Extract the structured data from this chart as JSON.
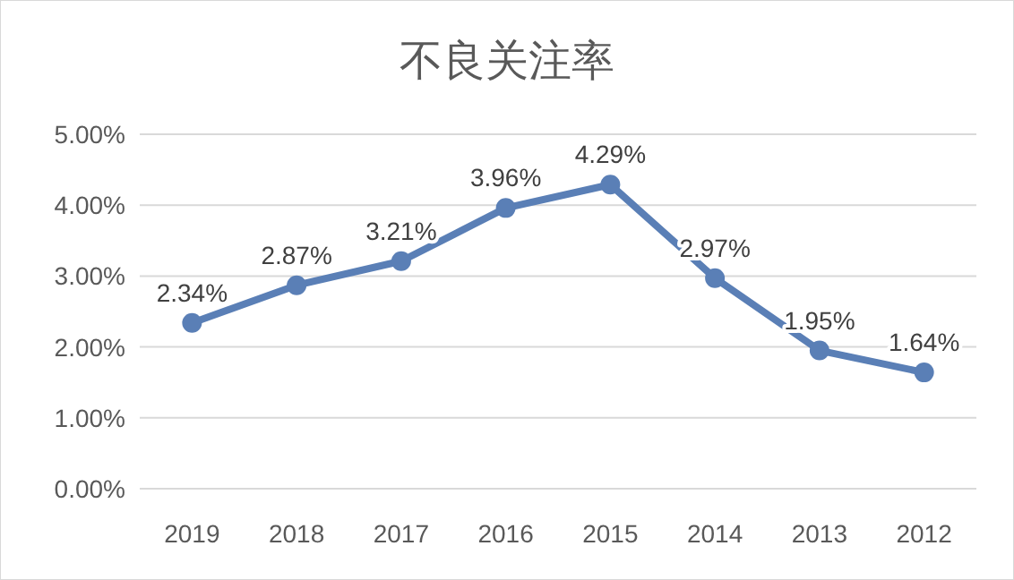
{
  "chart_data": {
    "type": "line",
    "title": "不良关注率",
    "categories": [
      "2019",
      "2018",
      "2017",
      "2016",
      "2015",
      "2014",
      "2013",
      "2012"
    ],
    "series": [
      {
        "color": "#5a7fb6",
        "values": [
          2.34,
          2.87,
          3.21,
          3.96,
          4.29,
          2.97,
          1.95,
          1.64
        ],
        "value_labels": [
          "2.34%",
          "2.87%",
          "3.21%",
          "3.96%",
          "4.29%",
          "2.97%",
          "1.95%",
          "1.64%"
        ]
      }
    ],
    "ylim": [
      0,
      5
    ],
    "yticks": [
      {
        "value": 0,
        "label": "0.00%"
      },
      {
        "value": 1,
        "label": "1.00%"
      },
      {
        "value": 2,
        "label": "2.00%"
      },
      {
        "value": 3,
        "label": "3.00%"
      },
      {
        "value": 4,
        "label": "4.00%"
      },
      {
        "value": 5,
        "label": "5.00%"
      }
    ],
    "grid": "y",
    "marker": "circle",
    "line_style": "solid"
  }
}
